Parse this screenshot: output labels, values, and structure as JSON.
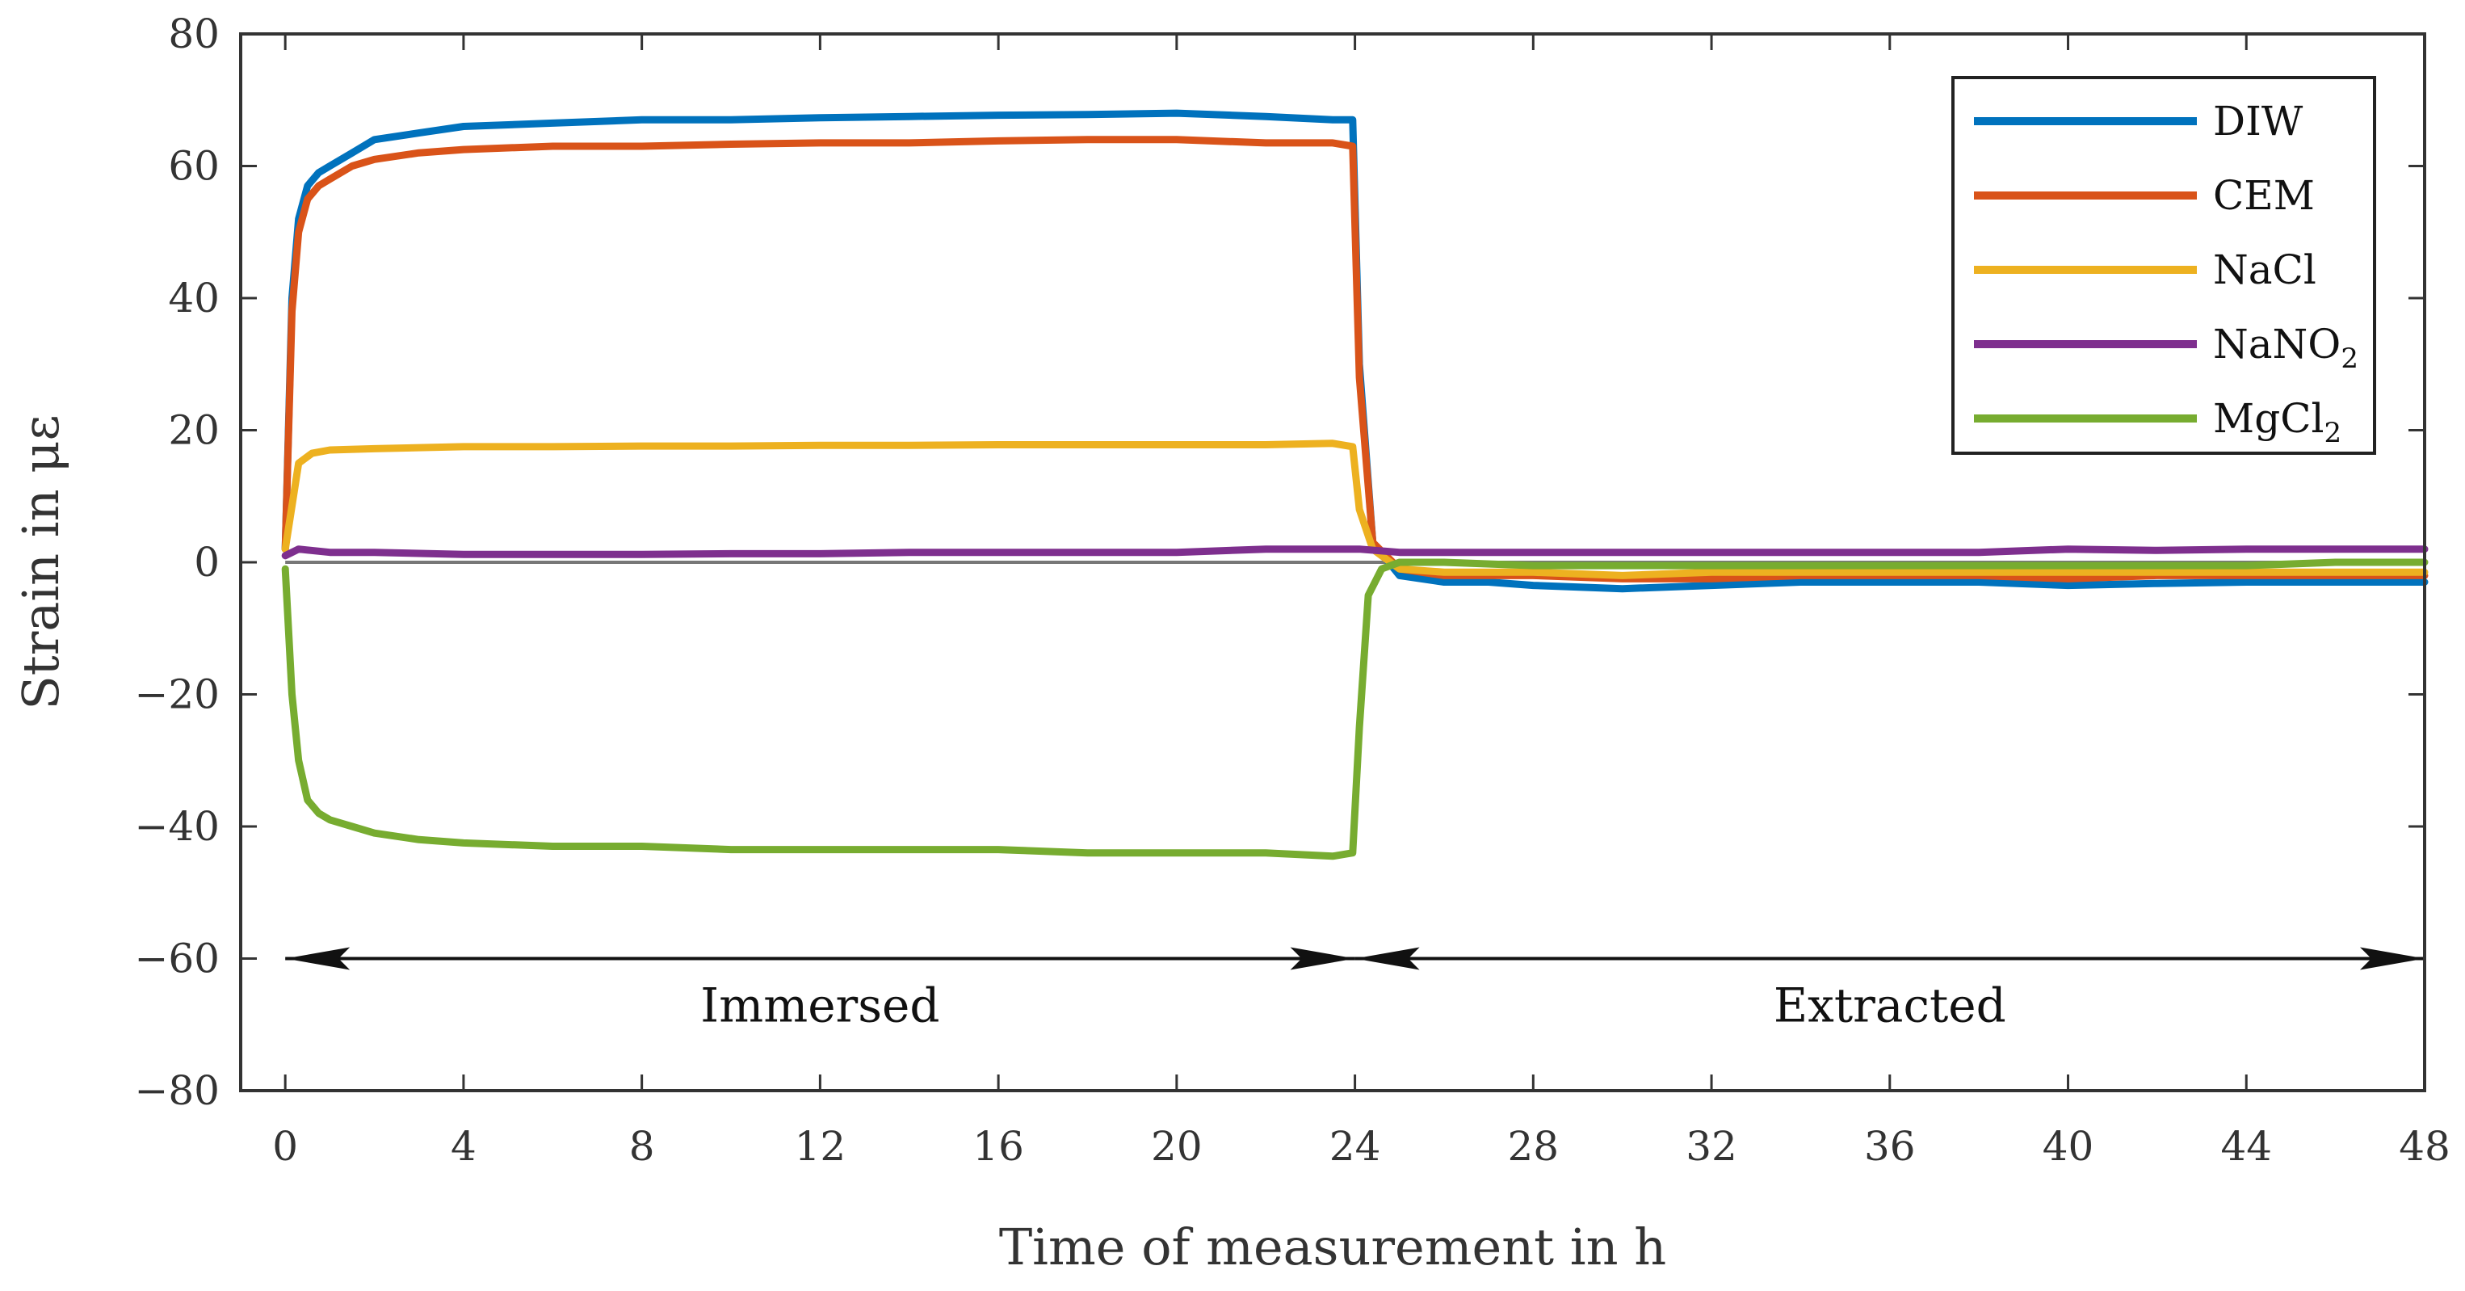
{
  "chart_data": {
    "type": "line",
    "title": "",
    "xlabel": "Time of measurement in h",
    "ylabel": "Strain in με",
    "xlim": [
      -1,
      48
    ],
    "ylim": [
      -80,
      80
    ],
    "xticks": [
      0,
      4,
      8,
      12,
      16,
      20,
      24,
      28,
      32,
      36,
      40,
      44,
      48
    ],
    "xtick_labels": [
      "0",
      "4",
      "8",
      "12",
      "16",
      "20",
      "24",
      "28",
      "32",
      "36",
      "40",
      "44",
      "48"
    ],
    "yticks": [
      80,
      60,
      40,
      20,
      0,
      -20,
      -40,
      -60,
      -80
    ],
    "ytick_labels": [
      "80",
      "60",
      "40",
      "20",
      "0",
      "−20",
      "−40",
      "−60",
      "−80"
    ],
    "grid": false,
    "zero_line": true,
    "legend_position": "top-right",
    "series": [
      {
        "name": "DIW",
        "label": "DIW",
        "sub": "",
        "color": "#0072BD",
        "x": [
          0,
          0.15,
          0.3,
          0.5,
          0.75,
          1,
          1.5,
          2,
          3,
          4,
          6,
          8,
          10,
          12,
          14,
          16,
          18,
          20,
          22,
          23.5,
          23.95,
          24.1,
          24.4,
          25,
          26,
          27,
          28,
          30,
          32,
          34,
          36,
          38,
          40,
          42,
          44,
          46,
          48
        ],
        "y": [
          2,
          40,
          52,
          57,
          59,
          60,
          62,
          64,
          65,
          66,
          66.5,
          67,
          67,
          67.3,
          67.5,
          67.7,
          67.8,
          68,
          67.5,
          67,
          67,
          30,
          3,
          -2,
          -3,
          -3,
          -3.5,
          -4,
          -3.5,
          -3,
          -3,
          -3,
          -3.5,
          -3.2,
          -3,
          -3,
          -3
        ]
      },
      {
        "name": "CEM",
        "label": "CEM",
        "sub": "",
        "color": "#D95319",
        "x": [
          0,
          0.15,
          0.3,
          0.5,
          0.75,
          1,
          1.5,
          2,
          3,
          4,
          6,
          8,
          10,
          12,
          14,
          16,
          18,
          20,
          22,
          23.5,
          23.95,
          24.1,
          24.4,
          25,
          26,
          27,
          28,
          30,
          32,
          34,
          36,
          38,
          40,
          42,
          44,
          46,
          48
        ],
        "y": [
          2,
          38,
          50,
          55,
          57,
          58,
          60,
          61,
          62,
          62.5,
          63,
          63,
          63.3,
          63.5,
          63.5,
          63.8,
          64,
          64,
          63.5,
          63.5,
          63,
          28,
          3,
          -1,
          -2,
          -2,
          -2,
          -2.5,
          -2.5,
          -2,
          -2,
          -2,
          -2.5,
          -2,
          -2,
          -2,
          -2
        ]
      },
      {
        "name": "NaCl",
        "label": "NaCl",
        "sub": "",
        "color": "#EDB120",
        "x": [
          0,
          0.3,
          0.6,
          1,
          2,
          4,
          6,
          8,
          10,
          12,
          14,
          16,
          18,
          20,
          22,
          23.5,
          23.95,
          24.1,
          24.4,
          25,
          26,
          28,
          30,
          32,
          34,
          36,
          38,
          40,
          42,
          44,
          46,
          48
        ],
        "y": [
          2,
          15,
          16.5,
          17,
          17.2,
          17.5,
          17.5,
          17.6,
          17.6,
          17.7,
          17.7,
          17.8,
          17.8,
          17.8,
          17.8,
          18,
          17.5,
          8,
          2,
          -1,
          -1.5,
          -1.5,
          -2,
          -1.5,
          -1.5,
          -1.5,
          -1.5,
          -1.5,
          -1.5,
          -1.5,
          -1.5,
          -1.5
        ]
      },
      {
        "name": "NaNO2",
        "label": "NaNO",
        "sub": "2",
        "color": "#7E2F8E",
        "x": [
          0,
          0.3,
          1,
          2,
          4,
          6,
          8,
          10,
          12,
          14,
          16,
          18,
          20,
          22,
          23.95,
          24.1,
          25,
          26,
          28,
          30,
          32,
          34,
          36,
          38,
          40,
          42,
          44,
          46,
          48
        ],
        "y": [
          1,
          2,
          1.5,
          1.5,
          1.2,
          1.2,
          1.2,
          1.3,
          1.3,
          1.5,
          1.5,
          1.5,
          1.5,
          2,
          2,
          2,
          1.5,
          1.5,
          1.5,
          1.5,
          1.5,
          1.5,
          1.5,
          1.5,
          2,
          1.8,
          2,
          2,
          2
        ]
      },
      {
        "name": "MgCl2",
        "label": "MgCl",
        "sub": "2",
        "color": "#77AC30",
        "x": [
          0,
          0.15,
          0.3,
          0.5,
          0.75,
          1,
          1.5,
          2,
          3,
          4,
          6,
          8,
          10,
          12,
          14,
          16,
          18,
          20,
          22,
          23.5,
          23.95,
          24.1,
          24.3,
          24.6,
          25,
          26,
          28,
          30,
          32,
          34,
          36,
          38,
          40,
          42,
          44,
          46,
          48
        ],
        "y": [
          -1,
          -20,
          -30,
          -36,
          -38,
          -39,
          -40,
          -41,
          -42,
          -42.5,
          -43,
          -43,
          -43.5,
          -43.5,
          -43.5,
          -43.5,
          -44,
          -44,
          -44,
          -44.5,
          -44,
          -25,
          -5,
          -1,
          0,
          0,
          -0.5,
          -0.5,
          -0.5,
          -0.5,
          -0.5,
          -0.5,
          -0.5,
          -0.5,
          -0.5,
          0,
          0
        ]
      }
    ],
    "annotations": [
      {
        "text": "Immersed",
        "x_from": 0,
        "x_to": 24,
        "y": -60
      },
      {
        "text": "Extracted",
        "x_from": 24,
        "x_to": 48,
        "y": -60
      }
    ]
  }
}
